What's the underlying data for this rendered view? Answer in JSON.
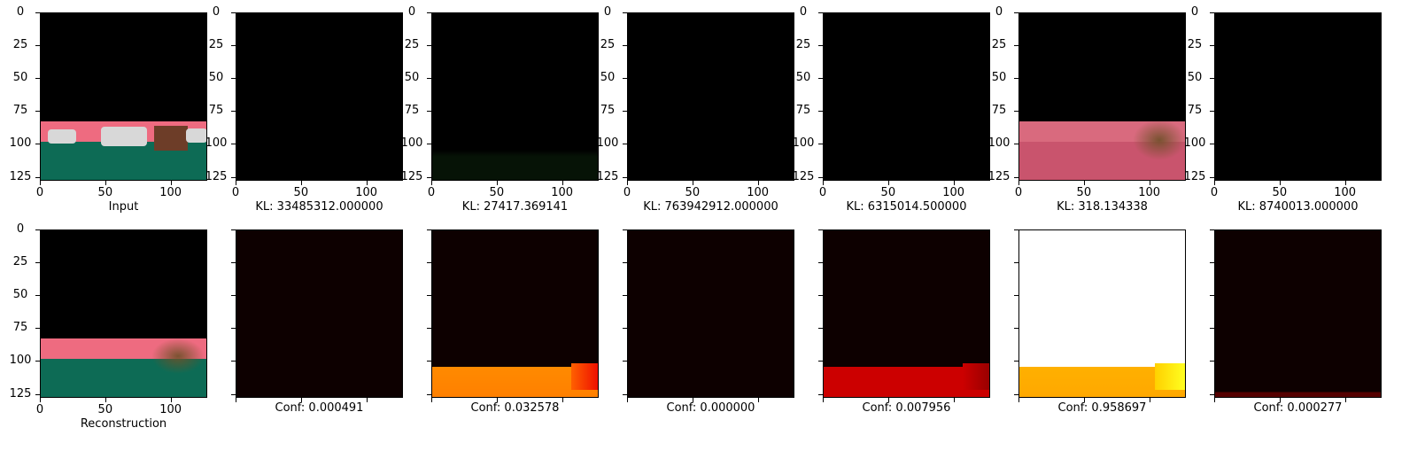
{
  "axis": {
    "y_ticks": [
      "0",
      "25",
      "50",
      "75",
      "100",
      "125"
    ],
    "x_ticks": [
      "0",
      "50",
      "100"
    ]
  },
  "top_row": {
    "captions": [
      "Input",
      "KL: 33485312.000000",
      "KL: 27417.369141",
      "KL: 763942912.000000",
      "KL: 6315014.500000",
      "KL: 318.134338",
      "KL: 8740013.000000"
    ]
  },
  "bottom_row": {
    "captions": [
      "Reconstruction",
      "Conf: 0.000491",
      "Conf: 0.032578",
      "Conf: 0.000000",
      "Conf: 0.007956",
      "Conf: 0.958697",
      "Conf: 0.000277"
    ]
  },
  "colors": {
    "pink": "#ee6b80",
    "green": "#0d6b55",
    "orange": "#ff8000",
    "red": "#cc0000",
    "yellow_orange": "#ffb000"
  }
}
